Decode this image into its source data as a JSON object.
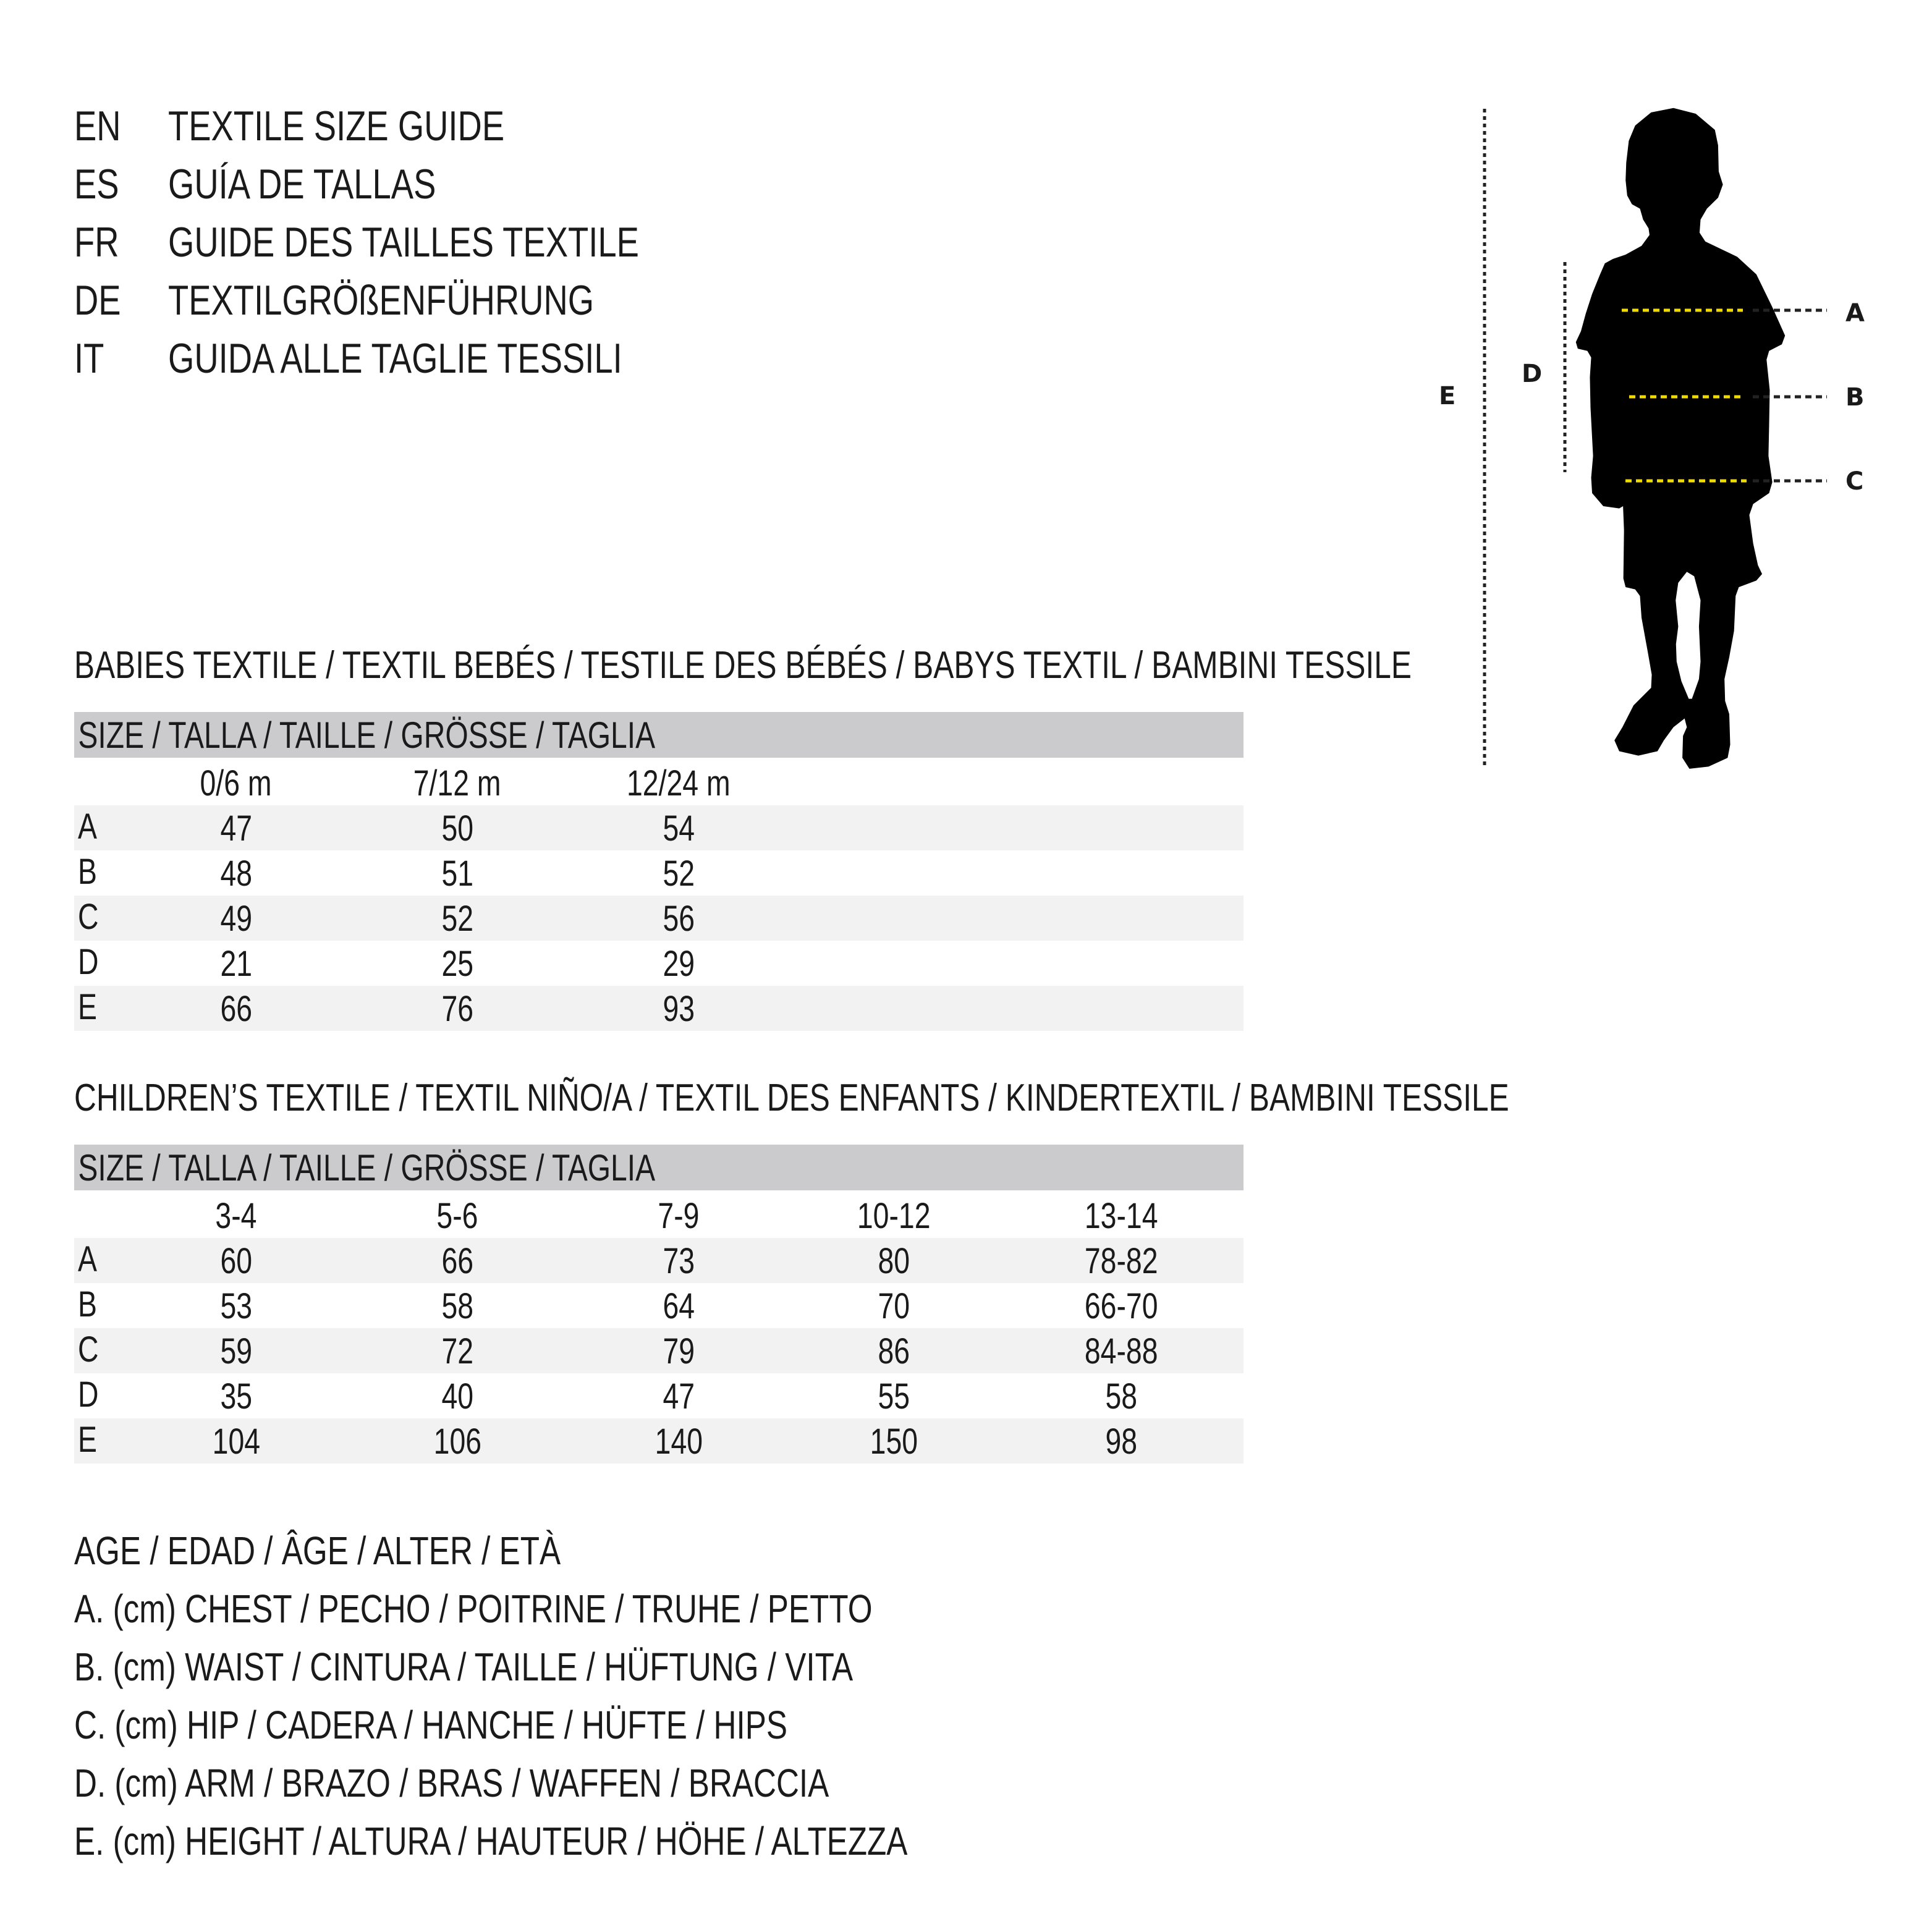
{
  "guide_titles": [
    {
      "lang": "EN",
      "title": "TEXTILE SIZE GUIDE"
    },
    {
      "lang": "ES",
      "title": "GUÍA DE TALLAS"
    },
    {
      "lang": "FR",
      "title": "GUIDE DES TAILLES TEXTILE"
    },
    {
      "lang": "DE",
      "title": "TEXTILGRÖßENFÜHRUNG"
    },
    {
      "lang": "IT",
      "title": "GUIDA ALLE TAGLIE TESSILI"
    }
  ],
  "babies": {
    "heading": "BABIES TEXTILE / TEXTIL BEBÉS / TESTILE DES BÉBÉS / BABYS TEXTIL / BAMBINI TESSILE",
    "size_label": "SIZE / TALLA / TAILLE / GRÖSSE / TAGLIA",
    "columns": [
      "0/6 m",
      "7/12 m",
      "12/24 m"
    ],
    "rows": [
      {
        "label": "A",
        "values": [
          "47",
          "50",
          "54"
        ]
      },
      {
        "label": "B",
        "values": [
          "48",
          "51",
          "52"
        ]
      },
      {
        "label": "C",
        "values": [
          "49",
          "52",
          "56"
        ]
      },
      {
        "label": "D",
        "values": [
          "21",
          "25",
          "29"
        ]
      },
      {
        "label": "E",
        "values": [
          "66",
          "76",
          "93"
        ]
      }
    ]
  },
  "children": {
    "heading": "CHILDREN’S TEXTILE / TEXTIL NIÑO/A / TEXTIL DES ENFANTS / KINDERTEXTIL / BAMBINI TESSILE",
    "size_label": "SIZE / TALLA / TAILLE / GRÖSSE / TAGLIA",
    "columns": [
      "3-4",
      "5-6",
      "7-9",
      "10-12",
      "13-14"
    ],
    "rows": [
      {
        "label": "A",
        "values": [
          "60",
          "66",
          "73",
          "80",
          "78-82"
        ]
      },
      {
        "label": "B",
        "values": [
          "53",
          "58",
          "64",
          "70",
          "66-70"
        ]
      },
      {
        "label": "C",
        "values": [
          "59",
          "72",
          "79",
          "86",
          "84-88"
        ]
      },
      {
        "label": "D",
        "values": [
          "35",
          "40",
          "47",
          "55",
          "58"
        ]
      },
      {
        "label": "E",
        "values": [
          "104",
          "106",
          "140",
          "150",
          "98"
        ]
      }
    ]
  },
  "legend": [
    "AGE / EDAD / ÂGE / ALTER / ETÀ",
    "A. (cm) CHEST / PECHO / POITRINE / TRUHE / PETTO",
    "B. (cm) WAIST / CINTURA / TAILLE / HÜFTUNG / VITA",
    "C. (cm) HIP / CADERA / HANCHE / HÜFTE / HIPS",
    "D. (cm) ARM / BRAZO / BRAS / WAFFEN / BRACCIA",
    "E. (cm) HEIGHT / ALTURA / HAUTEUR / HÖHE / ALTEZZA"
  ],
  "figure": {
    "icon": "child-silhouette-icon",
    "labels": {
      "a": "A",
      "b": "B",
      "c": "C",
      "d": "D",
      "e": "E"
    },
    "colors": {
      "measure_line": "#f2dc00",
      "guide_line": "#222222",
      "silhouette": "#000000",
      "header_bar": "#cbcbcd",
      "row_shade": "#f2f2f2"
    }
  }
}
